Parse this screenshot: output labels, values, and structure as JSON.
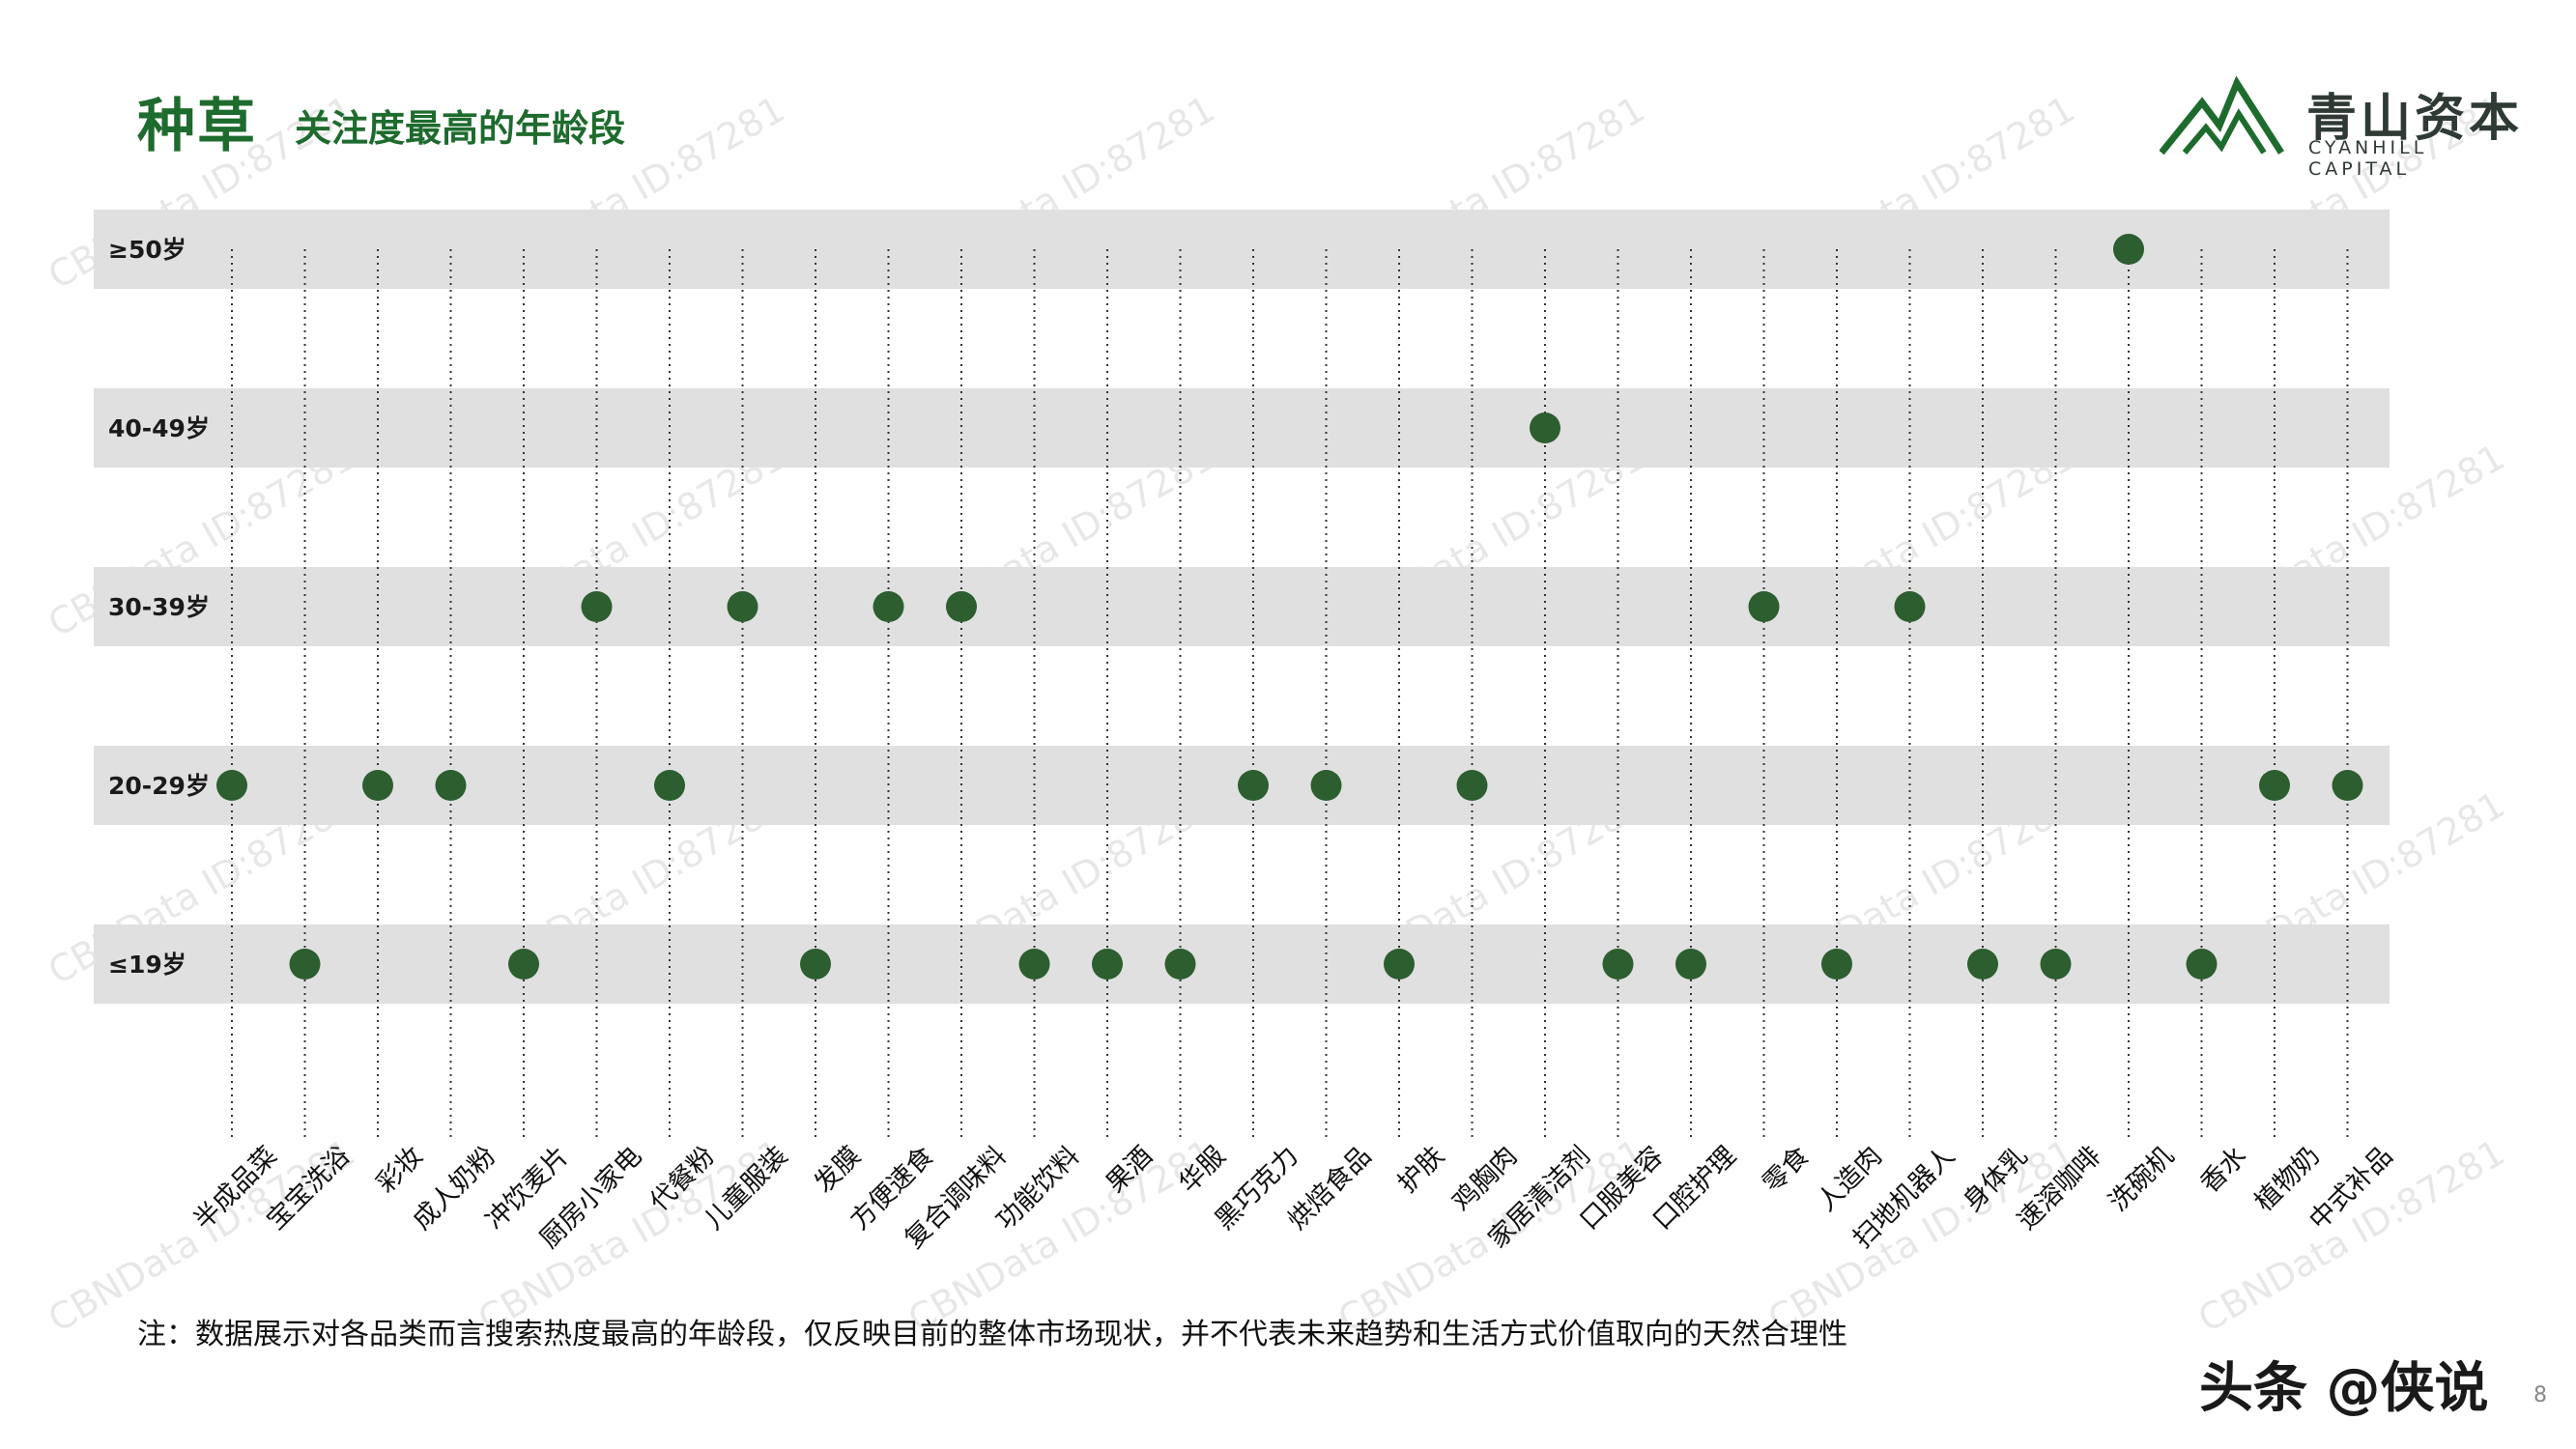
{
  "header": {
    "title": "种草",
    "subtitle": "关注度最高的年龄段"
  },
  "logo": {
    "name_cn": "青山资本",
    "name_en": "CYANHILL CAPITAL"
  },
  "footnote": "注：数据展示对各品类而言搜索热度最高的年龄段，仅反映目前的整体市场现状，并不代表未来趋势和生活方式价值取向的天然合理性",
  "source_tag": "头条 @侠说",
  "page_number": "8",
  "watermark": "CBNData ID:87281",
  "colors": {
    "accent": "#1e6b2e",
    "dot": "#2c5e30",
    "band": "#e0e0e0"
  },
  "chart_data": {
    "type": "scatter",
    "title": "",
    "xlabel": "",
    "ylabel": "",
    "y_categories": [
      "≥50岁",
      "40-49岁",
      "30-39岁",
      "20-29岁",
      "≤19岁"
    ],
    "x_categories": [
      "半成品菜",
      "宝宝洗浴",
      "彩妆",
      "成人奶粉",
      "冲饮麦片",
      "厨房小家电",
      "代餐粉",
      "儿童服装",
      "发膜",
      "方便速食",
      "复合调味料",
      "功能饮料",
      "果酒",
      "华服",
      "黑巧克力",
      "烘焙食品",
      "护肤",
      "鸡胸肉",
      "家居清洁剂",
      "口服美容",
      "口腔护理",
      "零食",
      "人造肉",
      "扫地机器人",
      "身体乳",
      "速溶咖啡",
      "洗碗机",
      "香水",
      "植物奶",
      "中式补品"
    ],
    "points": [
      {
        "x": "半成品菜",
        "y": "20-29岁"
      },
      {
        "x": "宝宝洗浴",
        "y": "≤19岁"
      },
      {
        "x": "彩妆",
        "y": "20-29岁"
      },
      {
        "x": "成人奶粉",
        "y": "20-29岁"
      },
      {
        "x": "冲饮麦片",
        "y": "≤19岁"
      },
      {
        "x": "厨房小家电",
        "y": "30-39岁"
      },
      {
        "x": "代餐粉",
        "y": "20-29岁"
      },
      {
        "x": "儿童服装",
        "y": "30-39岁"
      },
      {
        "x": "发膜",
        "y": "≤19岁"
      },
      {
        "x": "方便速食",
        "y": "30-39岁"
      },
      {
        "x": "复合调味料",
        "y": "30-39岁"
      },
      {
        "x": "功能饮料",
        "y": "≤19岁"
      },
      {
        "x": "果酒",
        "y": "≤19岁"
      },
      {
        "x": "华服",
        "y": "≤19岁"
      },
      {
        "x": "黑巧克力",
        "y": "20-29岁"
      },
      {
        "x": "烘焙食品",
        "y": "20-29岁"
      },
      {
        "x": "护肤",
        "y": "≤19岁"
      },
      {
        "x": "鸡胸肉",
        "y": "20-29岁"
      },
      {
        "x": "家居清洁剂",
        "y": "40-49岁"
      },
      {
        "x": "口服美容",
        "y": "≤19岁"
      },
      {
        "x": "口腔护理",
        "y": "≤19岁"
      },
      {
        "x": "零食",
        "y": "30-39岁"
      },
      {
        "x": "人造肉",
        "y": "≤19岁"
      },
      {
        "x": "扫地机器人",
        "y": "30-39岁"
      },
      {
        "x": "身体乳",
        "y": "≤19岁"
      },
      {
        "x": "速溶咖啡",
        "y": "≤19岁"
      },
      {
        "x": "洗碗机",
        "y": "≥50岁"
      },
      {
        "x": "香水",
        "y": "≤19岁"
      },
      {
        "x": "植物奶",
        "y": "20-29岁"
      },
      {
        "x": "中式补品",
        "y": "20-29岁"
      }
    ],
    "grid": "vertical dotted lines",
    "legend": "none"
  }
}
